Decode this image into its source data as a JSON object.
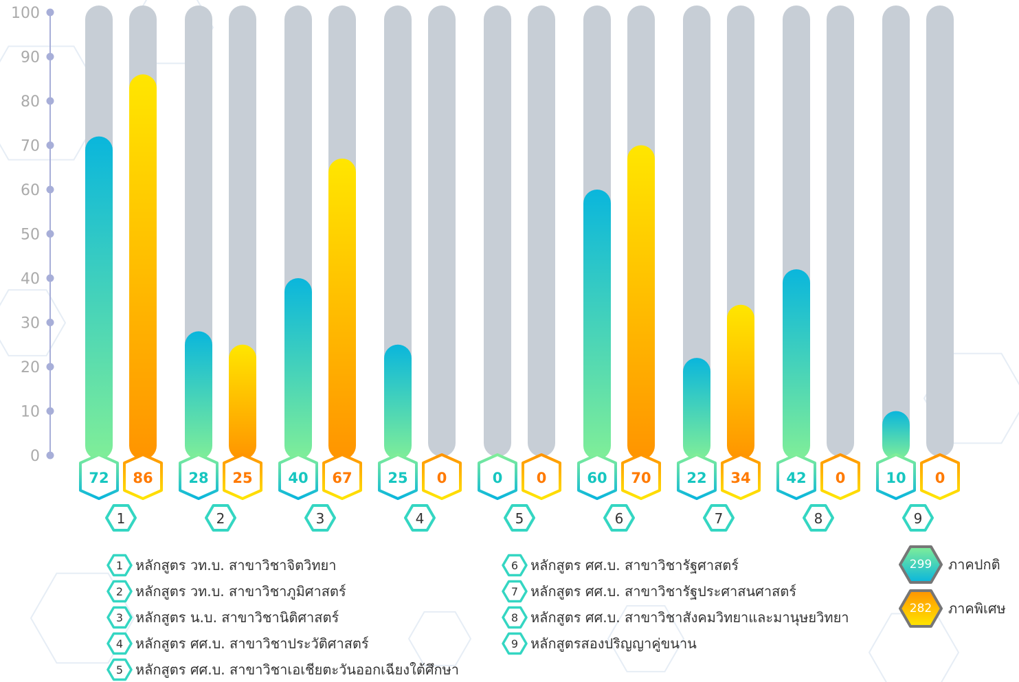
{
  "chart_data": {
    "type": "bar",
    "ylim": [
      0,
      100
    ],
    "yticks": [
      0,
      10,
      20,
      30,
      40,
      50,
      60,
      70,
      80,
      90,
      100
    ],
    "categories": [
      "1",
      "2",
      "3",
      "4",
      "5",
      "6",
      "7",
      "8",
      "9"
    ],
    "series": [
      {
        "name": "ภาคปกติ",
        "values": [
          72,
          28,
          40,
          25,
          0,
          60,
          22,
          42,
          10
        ]
      },
      {
        "name": "ภาคพิเศษ",
        "values": [
          86,
          25,
          67,
          0,
          0,
          70,
          34,
          0,
          0
        ]
      }
    ],
    "bar_labels": [
      [
        "72",
        "28",
        "40",
        "25",
        "0",
        "60",
        "22",
        "42",
        "10"
      ],
      [
        "86",
        "25",
        "67",
        "0",
        "0",
        "70",
        "34",
        "0",
        "0"
      ]
    ],
    "colors": {
      "regular_top": "#0ab6dc",
      "regular_bottom": "#80ee98",
      "special_top": "#ffe600",
      "special_bottom": "#ff9400",
      "track": "#c7ced6",
      "axis": "#a7aed8",
      "tick_text": "#aaaaaa",
      "regular_text": "#17c6c0",
      "special_text": "#ff7a00"
    },
    "legend": [
      {
        "num": "1",
        "text": "หลักสูตร วท.บ. สาขาวิชาจิตวิทยา"
      },
      {
        "num": "2",
        "text": "หลักสูตร วท.บ. สาขาวิชาภูมิศาสตร์"
      },
      {
        "num": "3",
        "text": "หลักสูตร น.บ. สาขาวิชานิติศาสตร์"
      },
      {
        "num": "4",
        "text": "หลักสูตร ศศ.บ. สาขาวิชาประวัติศาสตร์"
      },
      {
        "num": "5",
        "text": "หลักสูตร ศศ.บ. สาขาวิชาเอเชียตะวันออกเฉียงใต้ศึกษา"
      },
      {
        "num": "6",
        "text": "หลักสูตร ศศ.บ. สาขาวิชารัฐศาสตร์"
      },
      {
        "num": "7",
        "text": "หลักสูตร ศศ.บ. สาขาวิชารัฐประศาสนศาสตร์"
      },
      {
        "num": "8",
        "text": "หลักสูตร ศศ.บ. สาขาวิชาสังคมวิทยาและมานุษยวิทยา"
      },
      {
        "num": "9",
        "text": "หลักสูตรสองปริญญาคู่ขนาน"
      }
    ],
    "totals": [
      {
        "value": "299",
        "label": "ภาคปกติ"
      },
      {
        "value": "282",
        "label": "ภาคพิเศษ"
      }
    ]
  }
}
